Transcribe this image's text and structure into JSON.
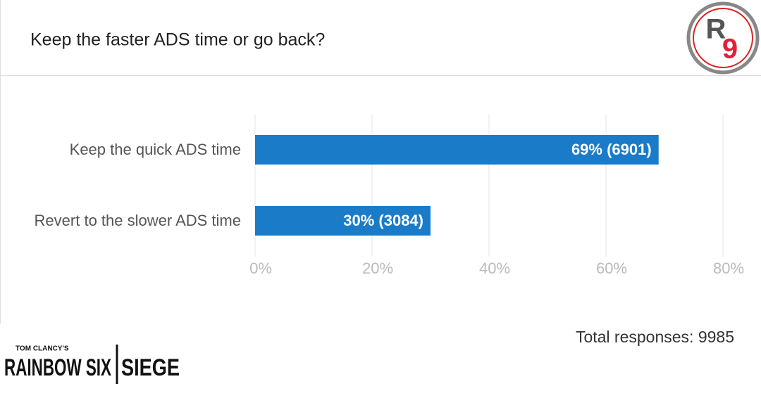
{
  "chart_data": {
    "type": "hbar",
    "title": "Keep the faster ADS time or go back?",
    "categories": [
      "Keep the quick ADS time",
      "Revert to the slower ADS time"
    ],
    "values": [
      69,
      30
    ],
    "value_labels": [
      "69% (6901)",
      "30% (3084)"
    ],
    "color": "#1a7bc9",
    "xlim": [
      0,
      80
    ],
    "xticks": [
      {
        "value": 0,
        "label": "0%"
      },
      {
        "value": 20,
        "label": "20%"
      },
      {
        "value": 40,
        "label": "40%"
      },
      {
        "value": 60,
        "label": "60%"
      },
      {
        "value": 80,
        "label": "80%"
      }
    ],
    "grid": true,
    "footer": "Total responses: 9985"
  },
  "badge": {
    "letter": "R",
    "digit": "9"
  },
  "brand": {
    "top": "TOM CLANCY'S",
    "name": "RAINBOW SIX",
    "sub": "SIEGE"
  }
}
